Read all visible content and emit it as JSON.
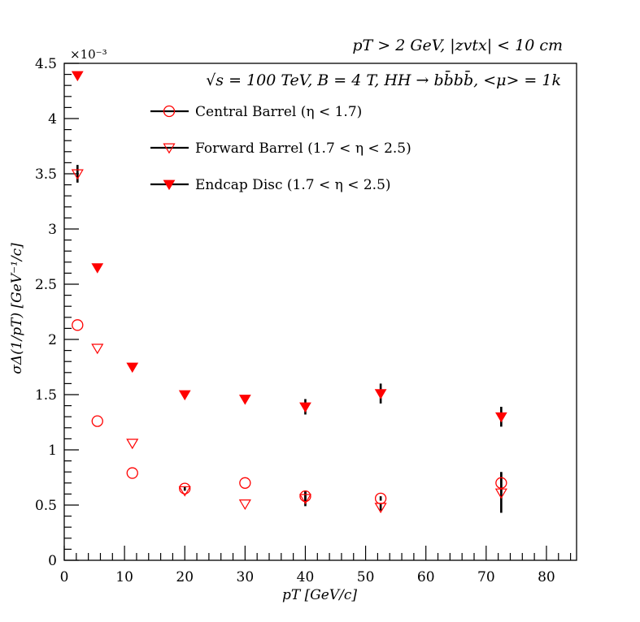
{
  "chart_data": {
    "type": "scatter",
    "header": "pT > 2 GeV, |zvtx| < 10 cm",
    "subtitle": "√s = 100 TeV, B = 4 T, HH → bb̄bb̄, <μ> = 1k",
    "xlabel": "pT [GeV/c]",
    "ylabel": "σΔ(1/pT) [GeV⁻¹/c]",
    "y_multiplier": "×10⁻³",
    "xlim": [
      0,
      85
    ],
    "ylim": [
      0,
      4.5
    ],
    "x_ticks": [
      0,
      10,
      20,
      30,
      40,
      50,
      60,
      70,
      80
    ],
    "y_ticks": [
      0,
      0.5,
      1,
      1.5,
      2,
      2.5,
      3,
      3.5,
      4,
      4.5
    ],
    "y_tick_labels": [
      "0",
      "0.5",
      "1",
      "1.5",
      "2",
      "2.5",
      "3",
      "3.5",
      "4",
      "4.5"
    ],
    "grid": false,
    "legend_position": "top-center",
    "colors": {
      "series": "#ff0000",
      "error_bars": "#000000"
    },
    "series": [
      {
        "name": "Central Barrel (η < 1.7)",
        "marker": "open-circle",
        "points": [
          {
            "x": 2.2,
            "y": 2.13,
            "err": 0.0
          },
          {
            "x": 5.5,
            "y": 1.26,
            "err": 0.0
          },
          {
            "x": 11.3,
            "y": 0.79,
            "err": 0.0
          },
          {
            "x": 20.0,
            "y": 0.65,
            "err": 0.02
          },
          {
            "x": 30.0,
            "y": 0.7,
            "err": 0.0
          },
          {
            "x": 40.0,
            "y": 0.58,
            "err": 0.04
          },
          {
            "x": 52.5,
            "y": 0.56,
            "err": 0.02
          },
          {
            "x": 72.5,
            "y": 0.7,
            "err": 0.1
          }
        ]
      },
      {
        "name": "Forward Barrel (1.7 < η < 2.5)",
        "marker": "open-triangle-down",
        "points": [
          {
            "x": 2.2,
            "y": 3.5,
            "err": 0.08
          },
          {
            "x": 5.5,
            "y": 1.92,
            "err": 0.0
          },
          {
            "x": 11.3,
            "y": 1.06,
            "err": 0.0
          },
          {
            "x": 20.0,
            "y": 0.63,
            "err": 0.0
          },
          {
            "x": 30.0,
            "y": 0.51,
            "err": 0.0
          },
          {
            "x": 40.0,
            "y": 0.56,
            "err": 0.07
          },
          {
            "x": 52.5,
            "y": 0.48,
            "err": 0.03
          },
          {
            "x": 72.5,
            "y": 0.61,
            "err": 0.18
          }
        ]
      },
      {
        "name": "Endcap Disc (1.7 < η < 2.5)",
        "marker": "filled-triangle-down",
        "points": [
          {
            "x": 2.2,
            "y": 4.39,
            "err": 0.0
          },
          {
            "x": 5.5,
            "y": 2.65,
            "err": 0.0
          },
          {
            "x": 11.3,
            "y": 1.75,
            "err": 0.0
          },
          {
            "x": 20.0,
            "y": 1.5,
            "err": 0.0
          },
          {
            "x": 30.0,
            "y": 1.46,
            "err": 0.0
          },
          {
            "x": 40.0,
            "y": 1.39,
            "err": 0.07
          },
          {
            "x": 52.5,
            "y": 1.51,
            "err": 0.09
          },
          {
            "x": 72.5,
            "y": 1.3,
            "err": 0.09
          }
        ]
      }
    ]
  }
}
